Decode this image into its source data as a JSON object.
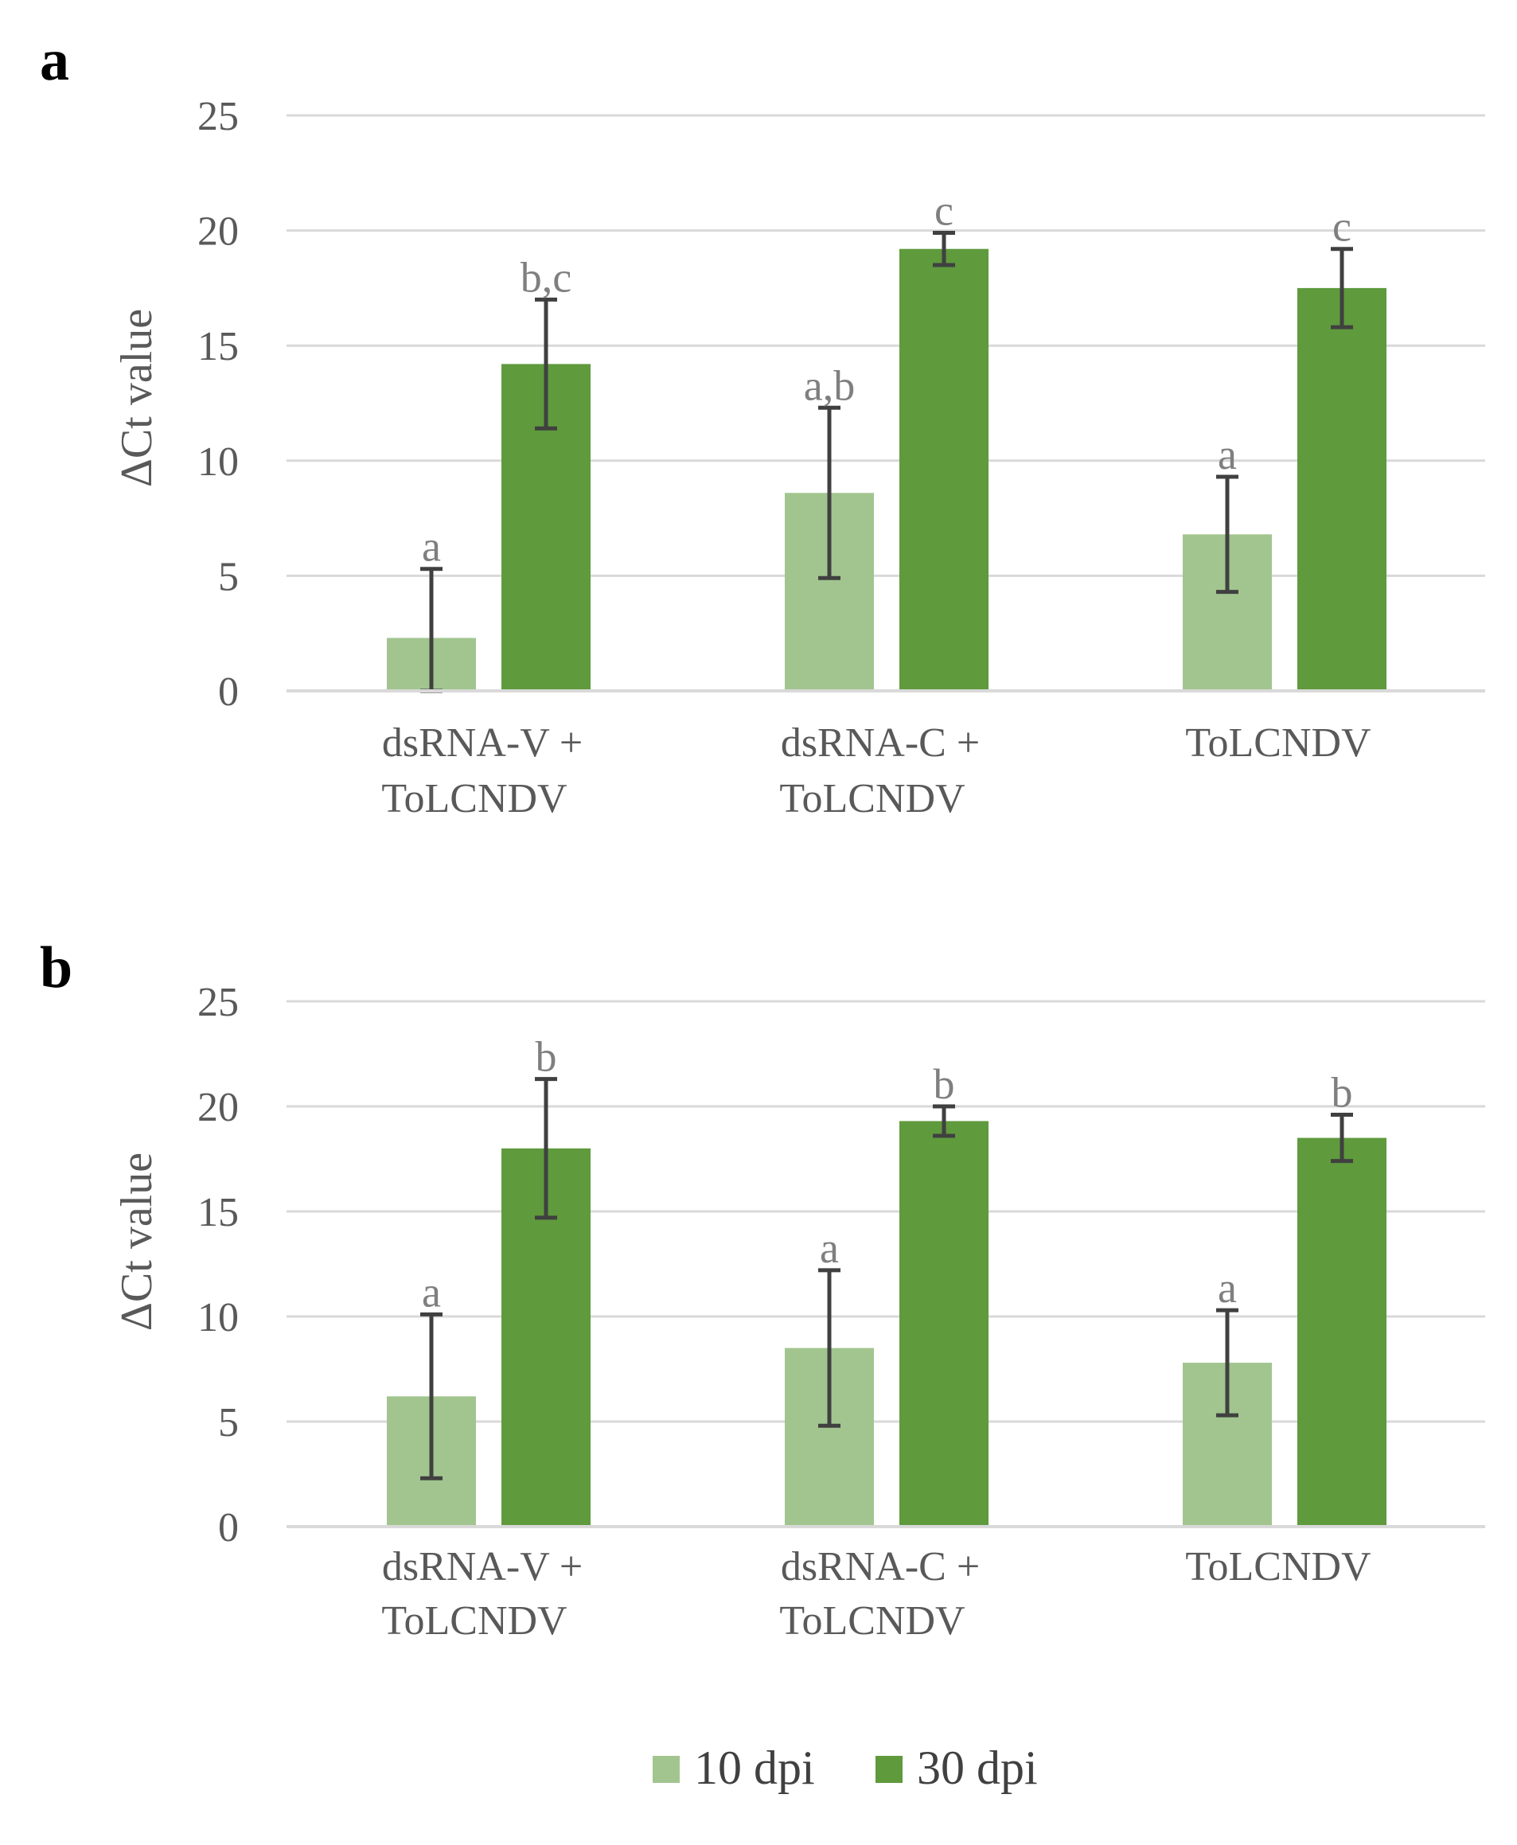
{
  "colors": {
    "dpi10": "#a2c58f",
    "dpi30": "#5f9a3d"
  },
  "legend": [
    {
      "label": "10 dpi",
      "color": "#a2c58f"
    },
    {
      "label": "30 dpi",
      "color": "#5f9a3d"
    }
  ],
  "chart_data": [
    {
      "type": "bar",
      "panel_label": "a",
      "ylabel": "ΔCt value",
      "ylim": [
        0,
        25
      ],
      "yticks": [
        "0",
        "5",
        "10",
        "15",
        "20",
        "25"
      ],
      "grid": true,
      "categories": [
        {
          "line1": "dsRNA-V +",
          "line2": "ToLCNDV"
        },
        {
          "line1": "dsRNA-C +",
          "line2": "ToLCNDV"
        },
        {
          "line1": "ToLCNDV",
          "line2": ""
        }
      ],
      "series": [
        {
          "name": "10 dpi",
          "values": [
            2.3,
            8.6,
            6.8
          ],
          "errors": [
            3.0,
            3.7,
            2.5
          ],
          "labels": [
            "a",
            "a,b",
            "a"
          ]
        },
        {
          "name": "30 dpi",
          "values": [
            14.2,
            19.2,
            17.5
          ],
          "errors": [
            2.8,
            0.7,
            1.7
          ],
          "labels": [
            "b,c",
            "c",
            "c"
          ]
        }
      ]
    },
    {
      "type": "bar",
      "panel_label": "b",
      "ylabel": "ΔCt value",
      "ylim": [
        0,
        25
      ],
      "yticks": [
        "0",
        "5",
        "10",
        "15",
        "20",
        "25"
      ],
      "grid": true,
      "categories": [
        {
          "line1": "dsRNA-V +",
          "line2": "ToLCNDV"
        },
        {
          "line1": "dsRNA-C +",
          "line2": "ToLCNDV"
        },
        {
          "line1": "ToLCNDV",
          "line2": ""
        }
      ],
      "series": [
        {
          "name": "10 dpi",
          "values": [
            6.2,
            8.5,
            7.8
          ],
          "errors": [
            3.9,
            3.7,
            2.5
          ],
          "labels": [
            "a",
            "a",
            "a"
          ]
        },
        {
          "name": "30 dpi",
          "values": [
            18.0,
            19.3,
            18.5
          ],
          "errors": [
            3.3,
            0.7,
            1.1
          ],
          "labels": [
            "b",
            "b",
            "b"
          ]
        }
      ]
    }
  ]
}
